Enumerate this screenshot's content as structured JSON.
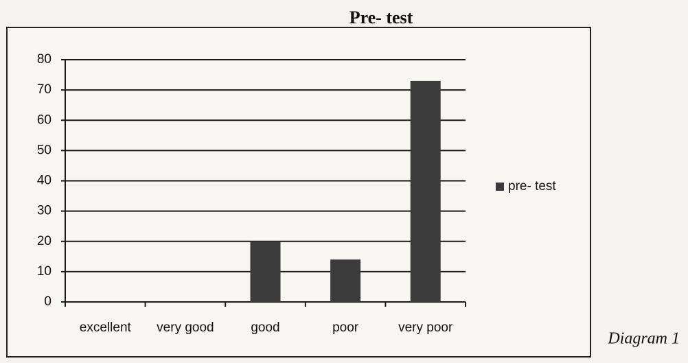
{
  "chart_data": {
    "type": "bar",
    "title": "Pre- test",
    "categories": [
      "excellent",
      "very good",
      "good",
      "poor",
      "very poor"
    ],
    "series": [
      {
        "name": "pre- test",
        "color": "#3b3b3b",
        "values": [
          0,
          0,
          20,
          14,
          73
        ]
      }
    ],
    "ylim": [
      0,
      80
    ],
    "yticks": [
      0,
      10,
      20,
      30,
      40,
      50,
      60,
      70,
      80
    ],
    "grid": true,
    "legend": "right",
    "annotation": "Diagram 1"
  }
}
